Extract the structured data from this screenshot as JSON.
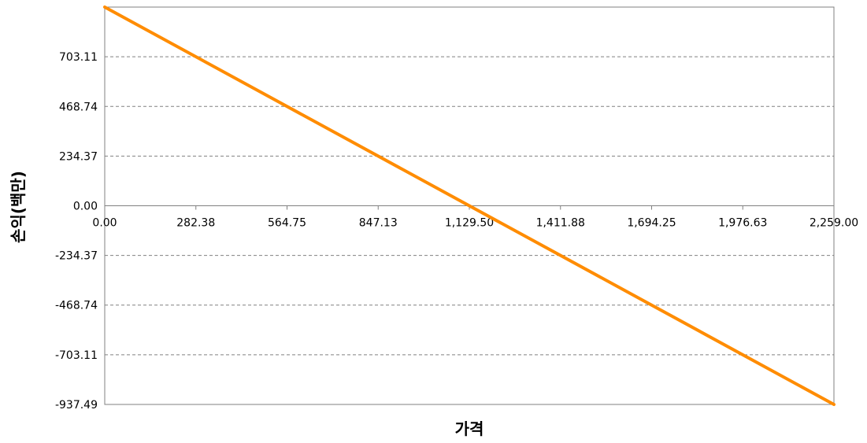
{
  "chart_data": {
    "type": "line",
    "title": "",
    "xlabel": "가격",
    "ylabel": "손익(백만)",
    "x_ticks": [
      "0.00",
      "282.38",
      "564.75",
      "847.13",
      "1,129.50",
      "1,411.88",
      "1,694.25",
      "1,976.63",
      "2,259.00"
    ],
    "y_ticks": [
      "703.11",
      "468.74",
      "234.37",
      "0.00",
      "-234.37",
      "-468.74",
      "-703.11",
      "-937.49"
    ],
    "xlim": [
      0,
      2259.0
    ],
    "ylim": [
      -937.49,
      937.49
    ],
    "grid": true,
    "legend": "none",
    "series": [
      {
        "color": "#FF8C00",
        "x": [
          0,
          2259.0
        ],
        "y": [
          937.49,
          -937.49
        ]
      }
    ]
  }
}
